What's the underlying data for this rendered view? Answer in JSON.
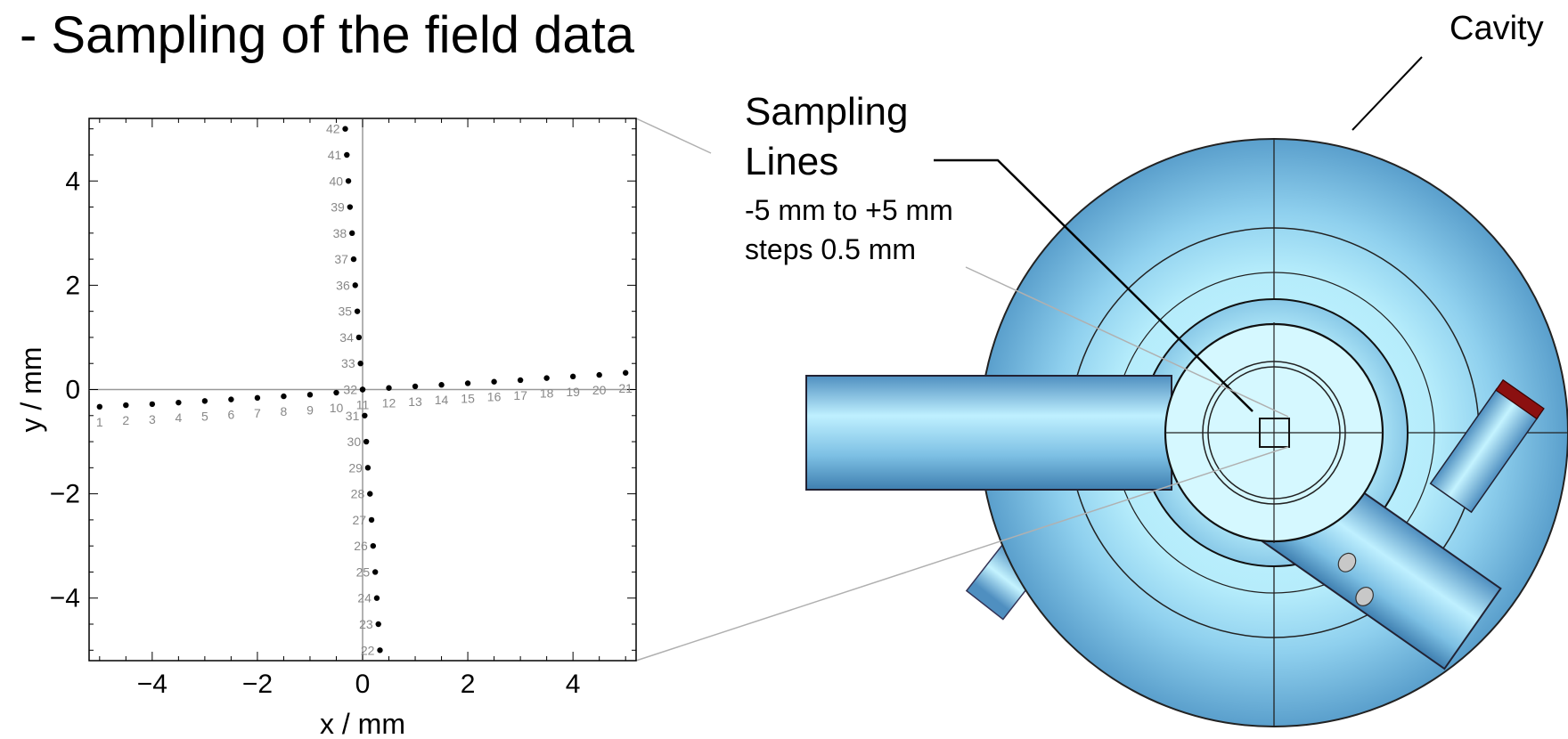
{
  "slide": {
    "title": "- Sampling of the field data",
    "cavity_label": "Cavity",
    "sampling": {
      "title_line1": "Sampling",
      "title_line2": "Lines",
      "range": "-5 mm to +5 mm",
      "steps": "steps 0.5 mm"
    }
  },
  "chart_data": {
    "type": "scatter",
    "title": "",
    "xlabel": "x / mm",
    "ylabel": "y / mm",
    "xlim": [
      -5.2,
      5.2
    ],
    "ylim": [
      -5.2,
      5.2
    ],
    "xticks": [
      "−4",
      "−2",
      "0",
      "2",
      "4"
    ],
    "yticks": [
      "4",
      "2",
      "0",
      "−2",
      "−4"
    ],
    "xtick_values": [
      -4,
      -2,
      0,
      2,
      4
    ],
    "ytick_values": [
      4,
      2,
      0,
      -2,
      -4
    ],
    "grid": false,
    "series": [
      {
        "labels": [
          "1",
          "2",
          "3",
          "4",
          "5",
          "6",
          "7",
          "8",
          "9",
          "10",
          "11",
          "12",
          "13",
          "14",
          "15",
          "16",
          "17",
          "18",
          "19",
          "20",
          "21"
        ],
        "x": [
          -5.0,
          -4.5,
          -4.0,
          -3.5,
          -3.0,
          -2.5,
          -2.0,
          -1.5,
          -1.0,
          -0.5,
          0.0,
          0.5,
          1.0,
          1.5,
          2.0,
          2.5,
          3.0,
          3.5,
          4.0,
          4.5,
          5.0
        ],
        "y": [
          -0.33,
          -0.3,
          -0.28,
          -0.25,
          -0.22,
          -0.19,
          -0.16,
          -0.13,
          -0.1,
          -0.06,
          0.0,
          0.03,
          0.06,
          0.09,
          0.12,
          0.15,
          0.18,
          0.22,
          0.25,
          0.28,
          0.32
        ]
      },
      {
        "labels": [
          "22",
          "23",
          "24",
          "25",
          "26",
          "27",
          "28",
          "29",
          "30",
          "31",
          "32",
          "33",
          "34",
          "35",
          "36",
          "37",
          "38",
          "39",
          "40",
          "41",
          "42"
        ],
        "x": [
          0.33,
          0.3,
          0.27,
          0.24,
          0.2,
          0.17,
          0.14,
          0.1,
          0.07,
          0.04,
          0.0,
          -0.04,
          -0.07,
          -0.1,
          -0.14,
          -0.17,
          -0.2,
          -0.24,
          -0.27,
          -0.3,
          -0.33
        ],
        "y": [
          -5.0,
          -4.5,
          -4.0,
          -3.5,
          -3.0,
          -2.5,
          -2.0,
          -1.5,
          -1.0,
          -0.5,
          0.0,
          0.5,
          1.0,
          1.5,
          2.0,
          2.5,
          3.0,
          3.5,
          4.0,
          4.5,
          5.0
        ]
      }
    ]
  }
}
